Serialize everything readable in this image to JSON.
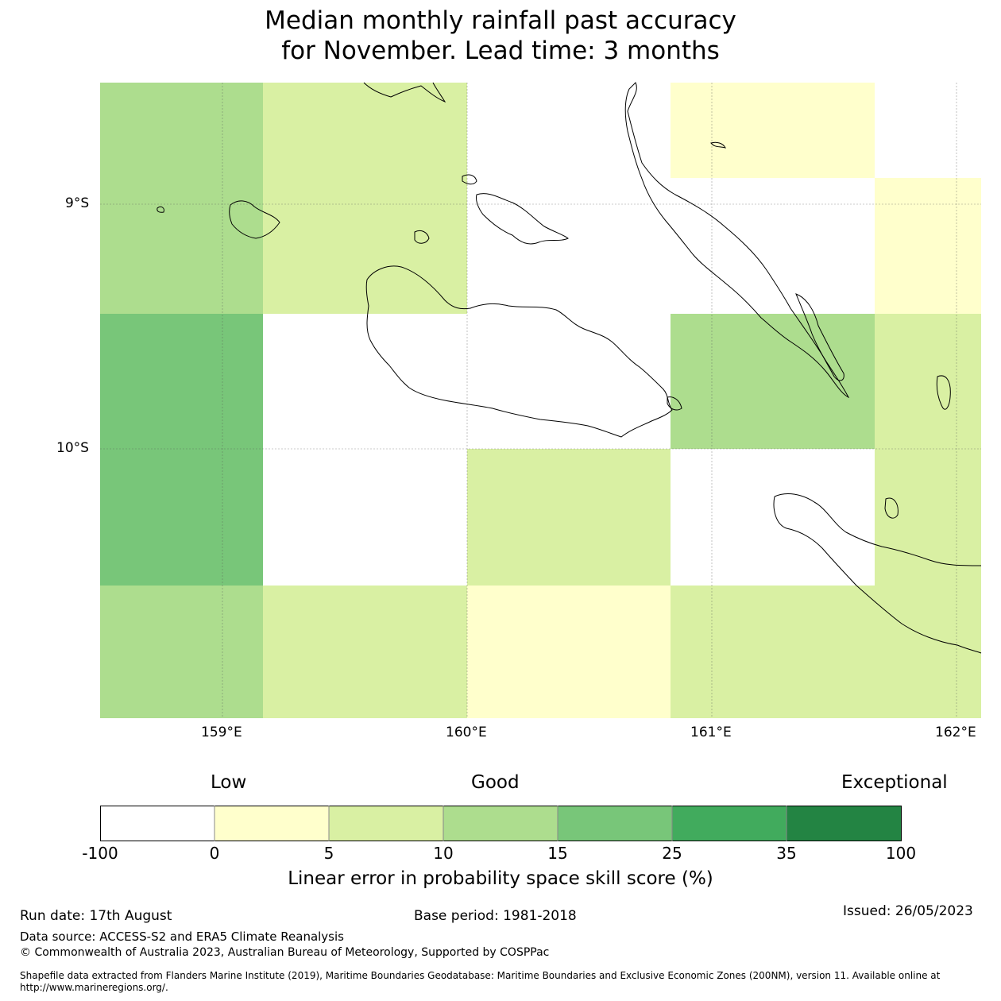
{
  "title": {
    "line1": "Median monthly rainfall past accuracy",
    "line2": "for November. Lead time: 3 months"
  },
  "map": {
    "lat_labels": [
      "9°S",
      "10°S"
    ],
    "lon_labels": [
      "159°E",
      "160°E",
      "161°E",
      "162°E"
    ],
    "lat_values": [
      -9,
      -10
    ],
    "lon_values": [
      159,
      160,
      161,
      162
    ],
    "coastline_color": "#000000",
    "grid": "dotted",
    "cells": [
      {
        "lon_range": [
          158.5,
          159.17
        ],
        "lat_range": [
          -8.5,
          -9.45
        ],
        "class": "10-15"
      },
      {
        "lon_range": [
          159.17,
          160.0
        ],
        "lat_range": [
          -8.5,
          -9.45
        ],
        "class": "5-10"
      },
      {
        "lon_range": [
          160.0,
          160.83
        ],
        "lat_range": [
          -8.5,
          -9.45
        ],
        "class": "-100-0"
      },
      {
        "lon_range": [
          160.83,
          161.67
        ],
        "lat_range": [
          -8.5,
          -8.89
        ],
        "class": "0-5"
      },
      {
        "lon_range": [
          161.67,
          162.1
        ],
        "lat_range": [
          -8.89,
          -9.45
        ],
        "class": "0-5"
      },
      {
        "lon_range": [
          158.5,
          159.17
        ],
        "lat_range": [
          -9.45,
          -10.56
        ],
        "class": "15-25"
      },
      {
        "lon_range": [
          160.83,
          161.67
        ],
        "lat_range": [
          -9.45,
          -10.0
        ],
        "class": "10-15"
      },
      {
        "lon_range": [
          161.67,
          162.1
        ],
        "lat_range": [
          -9.45,
          -10.56
        ],
        "class": "5-10"
      },
      {
        "lon_range": [
          160.0,
          160.83
        ],
        "lat_range": [
          -10.0,
          -10.56
        ],
        "class": "5-10"
      },
      {
        "lon_range": [
          158.5,
          159.17
        ],
        "lat_range": [
          -10.56,
          -11.1
        ],
        "class": "10-15"
      },
      {
        "lon_range": [
          159.17,
          160.0
        ],
        "lat_range": [
          -10.56,
          -11.1
        ],
        "class": "5-10"
      },
      {
        "lon_range": [
          160.0,
          160.83
        ],
        "lat_range": [
          -10.56,
          -11.1
        ],
        "class": "0-5"
      },
      {
        "lon_range": [
          160.83,
          162.1
        ],
        "lat_range": [
          -10.56,
          -11.1
        ],
        "class": "5-10"
      }
    ]
  },
  "legend": {
    "low": "Low",
    "good": "Good",
    "exceptional": "Exceptional",
    "ticks": [
      "-100",
      "0",
      "5",
      "10",
      "15",
      "25",
      "35",
      "100"
    ],
    "colors": [
      "#ffffff",
      "#ffffcc",
      "#d9f0a3",
      "#addd8e",
      "#78c679",
      "#41ab5d",
      "#238443"
    ],
    "label": "Linear error in probability space skill score (%)"
  },
  "footer": {
    "run_date": "Run date: 17th August",
    "base_period": "Base period: 1981-2018",
    "issued": "Issued: 26/05/2023",
    "data_source": "Data source: ACCESS-S2 and ERA5 Climate Reanalysis",
    "copyright": "© Commonwealth of Australia 2023, Australian Bureau of Meteorology, Supported by COSPPac",
    "shapefile_line1": "Shapefile data extracted from Flanders Marine Institute (2019), Maritime Boundaries Geodatabase: Maritime Boundaries and Exclusive Economic Zones (200NM), version 11. Available online at",
    "shapefile_line2": "http://www.marineregions.org/."
  }
}
